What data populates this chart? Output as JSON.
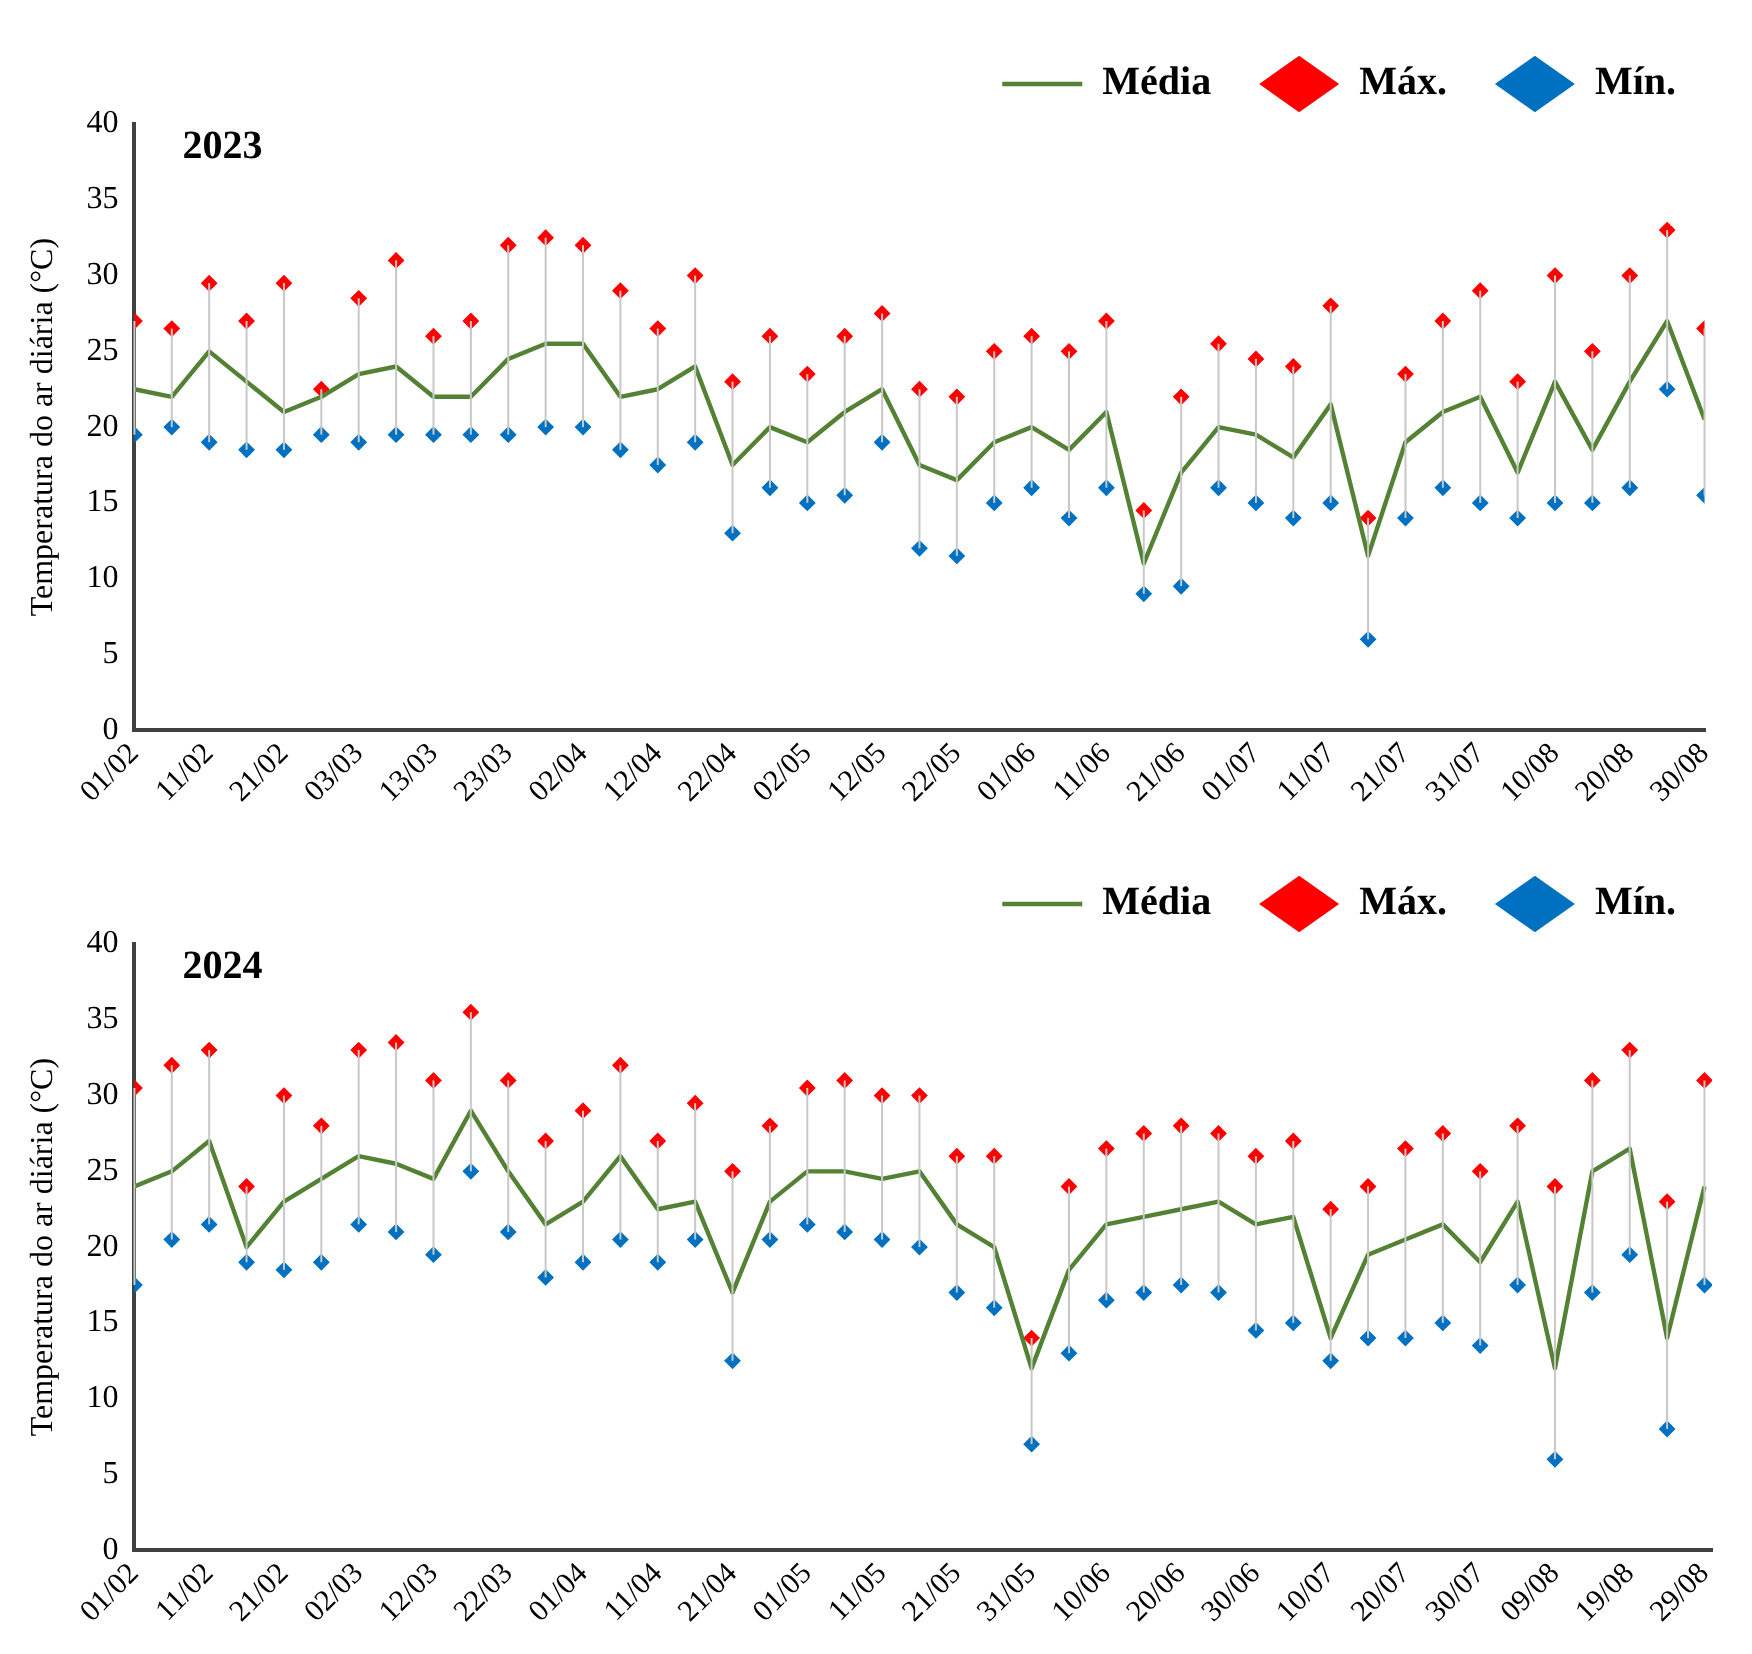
{
  "chart_data": [
    {
      "type": "scatter",
      "title": "2023",
      "ylabel": "Temperatura do ar diária (°C)",
      "legend": "top right",
      "grid": false,
      "marker": "diamond",
      "x": [
        "2023-02-01",
        "2023-02-06",
        "2023-02-11",
        "2023-02-16",
        "2023-02-21",
        "2023-02-26",
        "2023-03-03",
        "2023-03-08",
        "2023-03-13",
        "2023-03-18",
        "2023-03-23",
        "2023-03-28",
        "2023-04-02",
        "2023-04-07",
        "2023-04-12",
        "2023-04-17",
        "2023-04-22",
        "2023-04-27",
        "2023-05-02",
        "2023-05-07",
        "2023-05-12",
        "2023-05-17",
        "2023-05-22",
        "2023-05-27",
        "2023-06-01",
        "2023-06-06",
        "2023-06-11",
        "2023-06-16",
        "2023-06-21",
        "2023-06-26",
        "2023-07-01",
        "2023-07-06",
        "2023-07-11",
        "2023-07-16",
        "2023-07-21",
        "2023-07-26",
        "2023-07-31",
        "2023-08-05",
        "2023-08-10",
        "2023-08-15",
        "2023-08-20",
        "2023-08-25",
        "2023-08-30"
      ],
      "xlim": [
        "2023-02-01",
        "2023-08-30"
      ],
      "xticks": [
        {
          "value": "2023-02-01",
          "label": "01/02"
        },
        {
          "value": "2023-02-11",
          "label": "11/02"
        },
        {
          "value": "2023-02-21",
          "label": "21/02"
        },
        {
          "value": "2023-03-03",
          "label": "03/03"
        },
        {
          "value": "2023-03-13",
          "label": "13/03"
        },
        {
          "value": "2023-03-23",
          "label": "23/03"
        },
        {
          "value": "2023-04-02",
          "label": "02/04"
        },
        {
          "value": "2023-04-12",
          "label": "12/04"
        },
        {
          "value": "2023-04-22",
          "label": "22/04"
        },
        {
          "value": "2023-05-02",
          "label": "02/05"
        },
        {
          "value": "2023-05-12",
          "label": "12/05"
        },
        {
          "value": "2023-05-22",
          "label": "22/05"
        },
        {
          "value": "2023-06-01",
          "label": "01/06"
        },
        {
          "value": "2023-06-11",
          "label": "11/06"
        },
        {
          "value": "2023-06-21",
          "label": "21/06"
        },
        {
          "value": "2023-07-01",
          "label": "01/07"
        },
        {
          "value": "2023-07-11",
          "label": "11/07"
        },
        {
          "value": "2023-07-21",
          "label": "21/07"
        },
        {
          "value": "2023-07-31",
          "label": "31/07"
        },
        {
          "value": "2023-08-10",
          "label": "10/08"
        },
        {
          "value": "2023-08-20",
          "label": "20/08"
        },
        {
          "value": "2023-08-30",
          "label": "30/08"
        }
      ],
      "ylim": [
        0,
        40
      ],
      "yticks": [
        0,
        5,
        10,
        15,
        20,
        25,
        30,
        35,
        40
      ],
      "series": [
        {
          "name": "Média",
          "type": "line",
          "marker": "none",
          "color": "#548235",
          "values": [
            22.5,
            22,
            25,
            23,
            21,
            22,
            23.5,
            24,
            22,
            22,
            24.5,
            25.5,
            25.5,
            22,
            22.5,
            24,
            17.5,
            20,
            19,
            21,
            22.5,
            17.5,
            16.5,
            19,
            20,
            18.5,
            21,
            11,
            17,
            20,
            19.5,
            18,
            21.5,
            11.5,
            19,
            21,
            22,
            17,
            23,
            18.5,
            23,
            27,
            20.5
          ],
          "errors": [
            [
              19.5,
              27
            ],
            [
              20,
              26.5
            ],
            [
              19,
              29.5
            ],
            [
              18.5,
              27
            ],
            [
              18.5,
              29.5
            ],
            [
              19.5,
              22.5
            ],
            [
              19,
              28.5
            ],
            [
              19.5,
              31
            ],
            [
              19.5,
              26
            ],
            [
              19.5,
              27
            ],
            [
              19.5,
              32
            ],
            [
              20,
              32.5
            ],
            [
              20,
              32
            ],
            [
              18.5,
              29
            ],
            [
              17.5,
              26.5
            ],
            [
              19,
              30
            ],
            [
              13,
              23
            ],
            [
              16,
              26
            ],
            [
              15,
              23.5
            ],
            [
              15.5,
              26
            ],
            [
              19,
              27.5
            ],
            [
              12,
              22.5
            ],
            [
              11.5,
              22
            ],
            [
              15,
              25
            ],
            [
              16,
              26
            ],
            [
              14,
              25
            ],
            [
              16,
              27
            ],
            [
              9,
              14.5
            ],
            [
              9.5,
              22
            ],
            [
              16,
              25.5
            ],
            [
              15,
              24.5
            ],
            [
              14,
              24
            ],
            [
              15,
              28
            ],
            [
              6,
              14
            ],
            [
              14,
              23.5
            ],
            [
              16,
              27
            ],
            [
              15,
              29
            ],
            [
              14,
              23
            ],
            [
              15,
              30
            ],
            [
              15,
              25
            ],
            [
              16,
              30
            ],
            [
              22.5,
              33
            ],
            [
              15.5,
              26.5
            ]
          ]
        },
        {
          "name": "Máx.",
          "color": "#ff0000",
          "values": [
            27,
            26.5,
            29.5,
            27,
            29.5,
            22.5,
            28.5,
            31,
            26,
            27,
            32,
            32.5,
            32,
            29,
            26.5,
            30,
            23,
            26,
            23.5,
            26,
            27.5,
            22.5,
            22,
            25,
            26,
            25,
            27,
            14.5,
            22,
            25.5,
            24.5,
            24,
            28,
            14,
            23.5,
            27,
            29,
            23,
            30,
            25,
            30,
            33,
            26.5
          ]
        },
        {
          "name": "Mín.",
          "color": "#0070c0",
          "values": [
            19.5,
            20,
            19,
            18.5,
            18.5,
            19.5,
            19,
            19.5,
            19.5,
            19.5,
            19.5,
            20,
            20,
            18.5,
            17.5,
            19,
            13,
            16,
            15,
            15.5,
            19,
            12,
            11.5,
            15,
            16,
            14,
            16,
            9,
            9.5,
            16,
            15,
            14,
            15,
            6,
            14,
            16,
            15,
            14,
            15,
            15,
            16,
            22.5,
            15.5
          ]
        }
      ]
    },
    {
      "type": "scatter",
      "title": "2024",
      "ylabel": "Temperatura do ar diária (°C)",
      "legend": "top right",
      "grid": false,
      "marker": "diamond",
      "x": [
        "2024-02-01",
        "2024-02-06",
        "2024-02-11",
        "2024-02-16",
        "2024-02-21",
        "2024-02-26",
        "2024-03-02",
        "2024-03-07",
        "2024-03-12",
        "2024-03-17",
        "2024-03-22",
        "2024-03-27",
        "2024-04-01",
        "2024-04-06",
        "2024-04-11",
        "2024-04-16",
        "2024-04-21",
        "2024-04-26",
        "2024-05-01",
        "2024-05-06",
        "2024-05-11",
        "2024-05-16",
        "2024-05-21",
        "2024-05-26",
        "2024-05-31",
        "2024-06-05",
        "2024-06-10",
        "2024-06-15",
        "2024-06-20",
        "2024-06-25",
        "2024-06-30",
        "2024-07-05",
        "2024-07-10",
        "2024-07-15",
        "2024-07-20",
        "2024-07-25",
        "2024-07-30",
        "2024-08-04",
        "2024-08-09",
        "2024-08-14",
        "2024-08-19",
        "2024-08-24",
        "2024-08-29"
      ],
      "xlim": [
        "2024-02-01",
        "2024-08-30"
      ],
      "xticks": [
        {
          "value": "2024-02-01",
          "label": "01/02"
        },
        {
          "value": "2024-02-11",
          "label": "11/02"
        },
        {
          "value": "2024-02-21",
          "label": "21/02"
        },
        {
          "value": "2024-03-02",
          "label": "02/03"
        },
        {
          "value": "2024-03-12",
          "label": "12/03"
        },
        {
          "value": "2024-03-22",
          "label": "22/03"
        },
        {
          "value": "2024-04-01",
          "label": "01/04"
        },
        {
          "value": "2024-04-11",
          "label": "11/04"
        },
        {
          "value": "2024-04-21",
          "label": "21/04"
        },
        {
          "value": "2024-05-01",
          "label": "01/05"
        },
        {
          "value": "2024-05-11",
          "label": "11/05"
        },
        {
          "value": "2024-05-21",
          "label": "21/05"
        },
        {
          "value": "2024-05-31",
          "label": "31/05"
        },
        {
          "value": "2024-06-10",
          "label": "10/06"
        },
        {
          "value": "2024-06-20",
          "label": "20/06"
        },
        {
          "value": "2024-06-30",
          "label": "30/06"
        },
        {
          "value": "2024-07-10",
          "label": "10/07"
        },
        {
          "value": "2024-07-20",
          "label": "20/07"
        },
        {
          "value": "2024-07-30",
          "label": "30/07"
        },
        {
          "value": "2024-08-09",
          "label": "09/08"
        },
        {
          "value": "2024-08-19",
          "label": "19/08"
        },
        {
          "value": "2024-08-29",
          "label": "29/08"
        }
      ],
      "ylim": [
        0,
        40
      ],
      "yticks": [
        0,
        5,
        10,
        15,
        20,
        25,
        30,
        35,
        40
      ],
      "series": [
        {
          "name": "Média",
          "type": "line",
          "marker": "none",
          "color": "#548235",
          "values": [
            24,
            25,
            27,
            20,
            23,
            24.5,
            26,
            25.5,
            24.5,
            29,
            25,
            21.5,
            23,
            26,
            22.5,
            23,
            17,
            23,
            25,
            25,
            24.5,
            25,
            21.5,
            20,
            12,
            18.5,
            21.5,
            22,
            22.5,
            23,
            21.5,
            22,
            14,
            19.5,
            20.5,
            21.5,
            19,
            23,
            12,
            25,
            26.5,
            14,
            24
          ],
          "errors": [
            [
              17.5,
              30.5
            ],
            [
              20.5,
              32
            ],
            [
              21.5,
              33
            ],
            [
              19,
              24
            ],
            [
              18.5,
              30
            ],
            [
              19,
              28
            ],
            [
              21.5,
              33
            ],
            [
              21,
              33.5
            ],
            [
              19.5,
              31
            ],
            [
              25,
              35.5
            ],
            [
              21,
              31
            ],
            [
              18,
              27
            ],
            [
              19,
              29
            ],
            [
              20.5,
              32
            ],
            [
              19,
              27
            ],
            [
              20.5,
              29.5
            ],
            [
              12.5,
              25
            ],
            [
              20.5,
              28
            ],
            [
              21.5,
              30.5
            ],
            [
              21,
              31
            ],
            [
              20.5,
              30
            ],
            [
              20,
              30
            ],
            [
              17,
              26
            ],
            [
              16,
              26
            ],
            [
              7,
              14
            ],
            [
              13,
              24
            ],
            [
              16.5,
              26.5
            ],
            [
              17,
              27.5
            ],
            [
              17.5,
              28
            ],
            [
              17,
              27.5
            ],
            [
              14.5,
              26
            ],
            [
              15,
              27
            ],
            [
              12.5,
              22.5
            ],
            [
              14,
              24
            ],
            [
              14,
              26.5
            ],
            [
              15,
              27.5
            ],
            [
              13.5,
              25
            ],
            [
              17.5,
              28
            ],
            [
              6,
              24
            ],
            [
              17,
              31
            ],
            [
              19.5,
              33
            ],
            [
              8,
              23
            ],
            [
              17.5,
              31
            ]
          ]
        },
        {
          "name": "Máx.",
          "color": "#ff0000",
          "values": [
            30.5,
            32,
            33,
            24,
            30,
            28,
            33,
            33.5,
            31,
            35.5,
            31,
            27,
            29,
            32,
            27,
            29.5,
            25,
            28,
            30.5,
            31,
            30,
            30,
            26,
            26,
            14,
            24,
            26.5,
            27.5,
            28,
            27.5,
            26,
            27,
            22.5,
            24,
            26.5,
            27.5,
            25,
            28,
            24,
            31,
            33,
            23,
            31
          ]
        },
        {
          "name": "Mín.",
          "color": "#0070c0",
          "values": [
            17.5,
            20.5,
            21.5,
            19,
            18.5,
            19,
            21.5,
            21,
            19.5,
            25,
            21,
            18,
            19,
            20.5,
            19,
            20.5,
            12.5,
            20.5,
            21.5,
            21,
            20.5,
            20,
            17,
            16,
            7,
            13,
            16.5,
            17,
            17.5,
            17,
            14.5,
            15,
            12.5,
            14,
            14,
            15,
            13.5,
            17.5,
            6,
            17,
            19.5,
            8,
            17.5
          ]
        }
      ]
    }
  ]
}
